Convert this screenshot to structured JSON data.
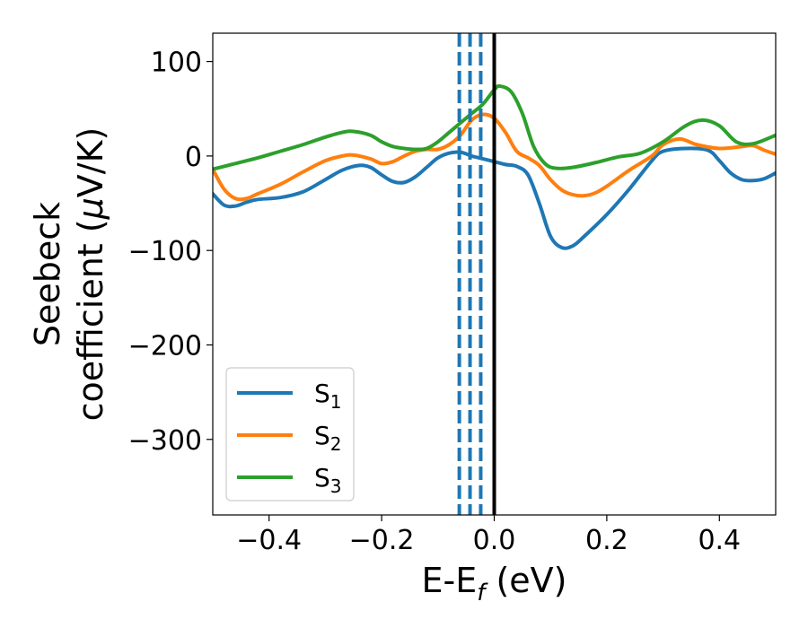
{
  "chart_data": {
    "type": "line",
    "title": "",
    "xlabel": "E-E",
    "xlabel_sub": "f",
    "xlabel_unit": " (eV)",
    "ylabel_line1": "Seebeck",
    "ylabel_line2": "coefficient  (",
    "ylabel_mu": "μ",
    "ylabel_unit": "V/K)",
    "xlim": [
      -0.5,
      0.5
    ],
    "ylim": [
      -380,
      130
    ],
    "xticks": [
      -0.4,
      -0.2,
      0.0,
      0.2,
      0.4
    ],
    "xtick_labels": [
      "−0.4",
      "−0.2",
      "0.0",
      "0.2",
      "0.4"
    ],
    "yticks": [
      100,
      0,
      -100,
      -200,
      -300
    ],
    "ytick_labels": [
      "100",
      "0",
      "−100",
      "−200",
      "−300"
    ],
    "grid": false,
    "legend_position": "lower-left",
    "vlines": [
      {
        "x": 0.0,
        "color": "#000000",
        "style": "solid"
      },
      {
        "x": -0.062,
        "color": "#1f77b4",
        "style": "dashed"
      },
      {
        "x": -0.043,
        "color": "#1f77b4",
        "style": "dashed"
      },
      {
        "x": -0.024,
        "color": "#1f77b4",
        "style": "dashed"
      }
    ],
    "series": [
      {
        "name": "S",
        "sub": "1",
        "color": "#1f77b4",
        "points": [
          [
            -0.5,
            -40
          ],
          [
            -0.48,
            -52
          ],
          [
            -0.46,
            -53
          ],
          [
            -0.44,
            -49
          ],
          [
            -0.42,
            -46
          ],
          [
            -0.38,
            -44
          ],
          [
            -0.34,
            -38
          ],
          [
            -0.3,
            -25
          ],
          [
            -0.27,
            -15
          ],
          [
            -0.24,
            -10
          ],
          [
            -0.22,
            -12
          ],
          [
            -0.2,
            -20
          ],
          [
            -0.18,
            -27
          ],
          [
            -0.16,
            -28
          ],
          [
            -0.14,
            -22
          ],
          [
            -0.12,
            -12
          ],
          [
            -0.1,
            -2
          ],
          [
            -0.08,
            3
          ],
          [
            -0.06,
            4
          ],
          [
            -0.04,
            0
          ],
          [
            -0.02,
            -3
          ],
          [
            0.0,
            -6
          ],
          [
            0.02,
            -9
          ],
          [
            0.04,
            -11
          ],
          [
            0.06,
            -20
          ],
          [
            0.08,
            -50
          ],
          [
            0.1,
            -85
          ],
          [
            0.12,
            -97
          ],
          [
            0.14,
            -95
          ],
          [
            0.16,
            -85
          ],
          [
            0.2,
            -62
          ],
          [
            0.24,
            -35
          ],
          [
            0.28,
            -5
          ],
          [
            0.3,
            5
          ],
          [
            0.34,
            8
          ],
          [
            0.38,
            6
          ],
          [
            0.4,
            -5
          ],
          [
            0.42,
            -18
          ],
          [
            0.44,
            -25
          ],
          [
            0.46,
            -26
          ],
          [
            0.48,
            -24
          ],
          [
            0.5,
            -18
          ]
        ]
      },
      {
        "name": "S",
        "sub": "2",
        "color": "#ff7f0e",
        "points": [
          [
            -0.5,
            -14
          ],
          [
            -0.48,
            -35
          ],
          [
            -0.46,
            -45
          ],
          [
            -0.44,
            -45
          ],
          [
            -0.42,
            -40
          ],
          [
            -0.38,
            -30
          ],
          [
            -0.34,
            -17
          ],
          [
            -0.3,
            -5
          ],
          [
            -0.27,
            0
          ],
          [
            -0.25,
            1
          ],
          [
            -0.22,
            -3
          ],
          [
            -0.2,
            -8
          ],
          [
            -0.18,
            -6
          ],
          [
            -0.16,
            0
          ],
          [
            -0.14,
            5
          ],
          [
            -0.12,
            7
          ],
          [
            -0.1,
            7
          ],
          [
            -0.08,
            12
          ],
          [
            -0.06,
            22
          ],
          [
            -0.04,
            38
          ],
          [
            -0.02,
            44
          ],
          [
            0.0,
            40
          ],
          [
            0.02,
            25
          ],
          [
            0.04,
            5
          ],
          [
            0.06,
            -2
          ],
          [
            0.08,
            -10
          ],
          [
            0.1,
            -25
          ],
          [
            0.12,
            -36
          ],
          [
            0.14,
            -41
          ],
          [
            0.16,
            -42
          ],
          [
            0.18,
            -39
          ],
          [
            0.2,
            -32
          ],
          [
            0.24,
            -15
          ],
          [
            0.28,
            0
          ],
          [
            0.3,
            12
          ],
          [
            0.33,
            18
          ],
          [
            0.36,
            12
          ],
          [
            0.4,
            8
          ],
          [
            0.44,
            10
          ],
          [
            0.46,
            11
          ],
          [
            0.48,
            6
          ],
          [
            0.5,
            2
          ]
        ]
      },
      {
        "name": "S",
        "sub": "3",
        "color": "#2ca02c",
        "points": [
          [
            -0.5,
            -14
          ],
          [
            -0.46,
            -8
          ],
          [
            -0.42,
            -2
          ],
          [
            -0.38,
            5
          ],
          [
            -0.34,
            12
          ],
          [
            -0.3,
            20
          ],
          [
            -0.27,
            25
          ],
          [
            -0.25,
            26
          ],
          [
            -0.22,
            22
          ],
          [
            -0.2,
            15
          ],
          [
            -0.18,
            10
          ],
          [
            -0.16,
            8
          ],
          [
            -0.14,
            7
          ],
          [
            -0.12,
            8
          ],
          [
            -0.1,
            15
          ],
          [
            -0.08,
            25
          ],
          [
            -0.06,
            35
          ],
          [
            -0.04,
            45
          ],
          [
            -0.02,
            55
          ],
          [
            0.0,
            70
          ],
          [
            0.01,
            74
          ],
          [
            0.03,
            68
          ],
          [
            0.05,
            45
          ],
          [
            0.07,
            10
          ],
          [
            0.09,
            -8
          ],
          [
            0.11,
            -13
          ],
          [
            0.14,
            -12
          ],
          [
            0.18,
            -7
          ],
          [
            0.22,
            -1
          ],
          [
            0.26,
            3
          ],
          [
            0.3,
            15
          ],
          [
            0.34,
            32
          ],
          [
            0.37,
            38
          ],
          [
            0.4,
            32
          ],
          [
            0.43,
            15
          ],
          [
            0.46,
            13
          ],
          [
            0.5,
            22
          ]
        ]
      }
    ]
  }
}
